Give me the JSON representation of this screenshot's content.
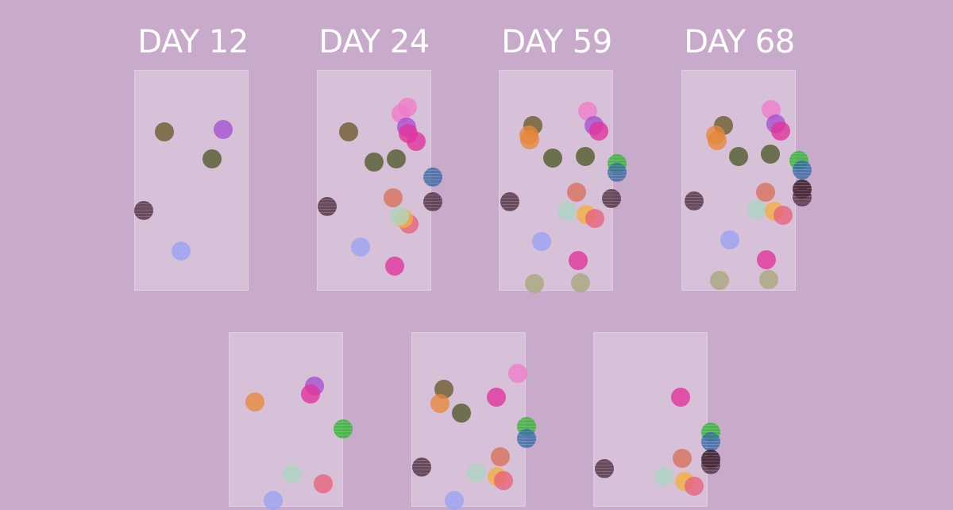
{
  "day_labels": [
    "DAY 12",
    "DAY 24",
    "DAY 59",
    "DAY 68"
  ],
  "colors": {
    "background": "#c8abca",
    "panel": "#dccbe0",
    "label": "#ffffff",
    "olive": "#6b5a2a",
    "purple": "#a54fd0",
    "dark_green": "#4f5a26",
    "maroon": "#4b2a3c",
    "lavender": "#9aa2f2",
    "pink": "#ee7cc8",
    "magenta": "#e2329a",
    "green": "#2fb52f",
    "blue": "#3768a3",
    "orange": "#e8883a",
    "coral": "#d87058",
    "mint": "#acd6c2",
    "yellow_orange": "#f5b03c",
    "khaki": "#a6a878",
    "salmon": "#e8627a",
    "near_black": "#2a0f1a"
  }
}
